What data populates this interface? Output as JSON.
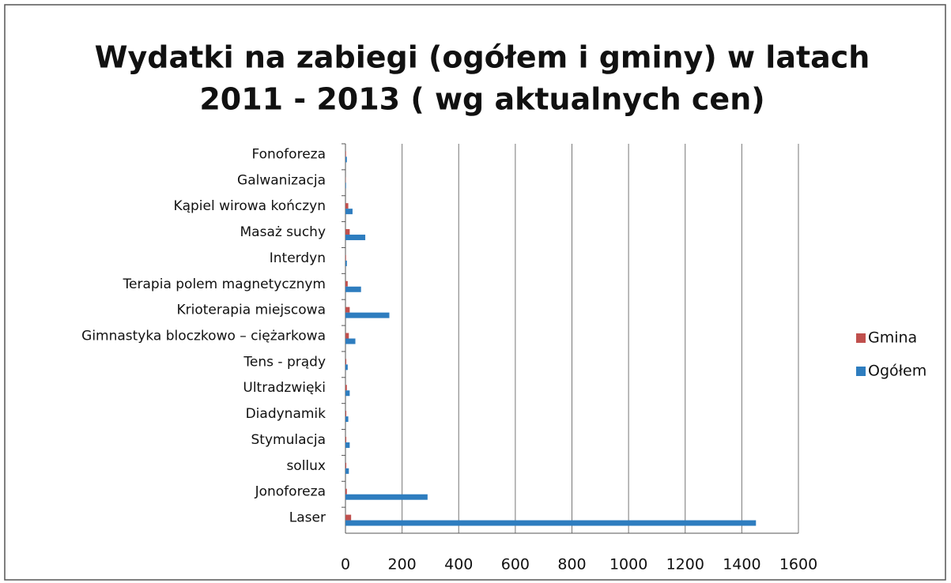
{
  "chart_data": {
    "type": "barh",
    "title": [
      "Wydatki na zabiegi (ogółem i gminy) w latach",
      "2011 - 2013 ( wg aktualnych cen)"
    ],
    "categories": [
      "Fonoforeza",
      "Galwanizacja",
      "Kąpiel wirowa kończyn",
      "Masaż suchy",
      "Interdyn",
      "Terapia polem magnetycznym",
      "Krioterapia miejscowa",
      "Gimnastyka bloczkowo – ciężarkowa",
      "Tens - prądy",
      "Ultradzwięki",
      "Diadynamik",
      "Stymulacja",
      "sollux",
      "Jonoforeza",
      "Laser"
    ],
    "series": [
      {
        "name": "Gmina",
        "color": "#c0504d",
        "values": [
          2,
          1,
          10,
          15,
          2,
          8,
          15,
          12,
          3,
          5,
          3,
          3,
          3,
          5,
          20
        ]
      },
      {
        "name": "Ogółem",
        "color": "#2e7dbf",
        "values": [
          5,
          2,
          25,
          70,
          5,
          55,
          155,
          35,
          8,
          15,
          10,
          15,
          12,
          290,
          1450
        ]
      }
    ],
    "xlim": [
      0,
      1600
    ],
    "xticks": [
      0,
      200,
      400,
      600,
      800,
      1000,
      1200,
      1400,
      1600
    ],
    "grid": true,
    "legend": "right"
  }
}
